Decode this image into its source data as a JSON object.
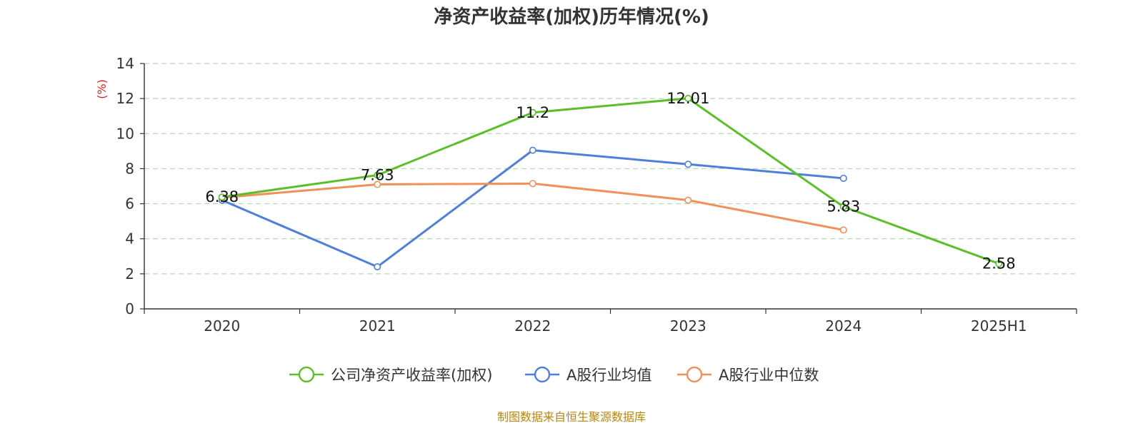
{
  "chart_data": {
    "type": "line",
    "title": "净资产收益率(加权)历年情况(%)",
    "ylabel": "(%)",
    "ylim": [
      0,
      14
    ],
    "yticks": [
      0,
      2,
      4,
      6,
      8,
      10,
      12,
      14
    ],
    "categories": [
      "2020",
      "2021",
      "2022",
      "2023",
      "2024",
      "2025H1"
    ],
    "grid": true,
    "legend_position": "bottom",
    "series": [
      {
        "name": "公司净资产收益率(加权)",
        "color": "#5cbf2a",
        "values": [
          6.38,
          7.63,
          11.2,
          12.01,
          5.83,
          2.58
        ],
        "labels": [
          "6.38",
          "7.63",
          "11.2",
          "12.01",
          "5.83",
          "2.58"
        ]
      },
      {
        "name": "A股行业均值",
        "color": "#4f7fd8",
        "values": [
          6.2,
          2.4,
          9.05,
          8.25,
          7.45,
          null
        ]
      },
      {
        "name": "A股行业中位数",
        "color": "#f0905a",
        "values": [
          6.35,
          7.1,
          7.15,
          6.2,
          4.5,
          null
        ]
      }
    ],
    "source": "制图数据来自恒生聚源数据库",
    "ylabel_color": "#e02020",
    "source_color": "#b8860b",
    "grid_color": "#b5d9b5"
  }
}
